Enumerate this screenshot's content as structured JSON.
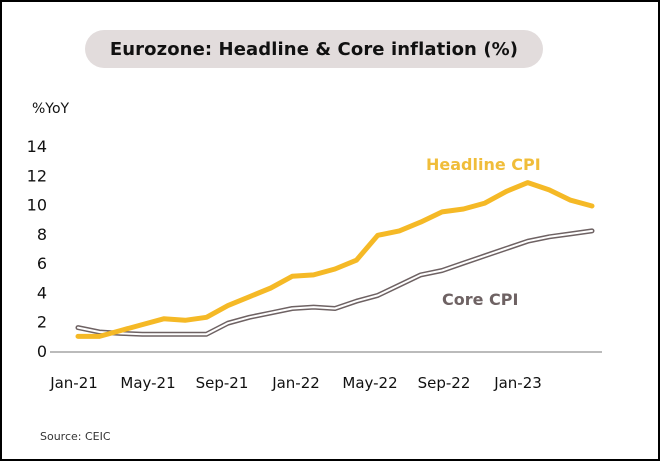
{
  "chart_data": {
    "type": "line",
    "title": "Eurozone: Headline & Core inflation (%)",
    "ylabel": "%YoY",
    "xlabel": "",
    "ylim": [
      0,
      14
    ],
    "yticks": [
      "0",
      "2",
      "4",
      "6",
      "8",
      "10",
      "12",
      "14"
    ],
    "grid": false,
    "x": [
      "Jan-21",
      "Feb-21",
      "Mar-21",
      "Apr-21",
      "May-21",
      "Jun-21",
      "Jul-21",
      "Aug-21",
      "Sep-21",
      "Oct-21",
      "Nov-21",
      "Dec-21",
      "Jan-22",
      "Feb-22",
      "Mar-22",
      "Apr-22",
      "May-22",
      "Jun-22",
      "Jul-22",
      "Aug-22",
      "Sep-22",
      "Oct-22",
      "Nov-22",
      "Dec-22",
      "Jan-23"
    ],
    "xticks": [
      "Jan-21",
      "May-21",
      "Sep-21",
      "Jan-22",
      "May-22",
      "Sep-22",
      "Jan-23"
    ],
    "series": [
      {
        "name": "Headline CPI",
        "color": "#f5b926",
        "values": [
          1.0,
          1.0,
          1.4,
          1.8,
          2.2,
          2.1,
          2.3,
          3.1,
          3.7,
          4.3,
          5.1,
          5.2,
          5.6,
          6.2,
          7.9,
          8.2,
          8.8,
          9.5,
          9.7,
          10.1,
          10.9,
          11.5,
          11.0,
          10.3,
          9.9
        ]
      },
      {
        "name": "Core CPI",
        "color": "#6e6263",
        "values": [
          1.6,
          1.3,
          1.2,
          1.15,
          1.15,
          1.15,
          1.15,
          1.9,
          2.3,
          2.6,
          2.9,
          3.0,
          2.9,
          3.4,
          3.8,
          4.5,
          5.2,
          5.5,
          6.0,
          6.5,
          7.0,
          7.5,
          7.8,
          8.0,
          8.2
        ]
      }
    ],
    "annotations": [
      {
        "text": "Headline CPI",
        "series": 0
      },
      {
        "text": "Core CPI",
        "series": 1
      }
    ],
    "legend": "inline-labels"
  },
  "source": "Source: CEIC"
}
